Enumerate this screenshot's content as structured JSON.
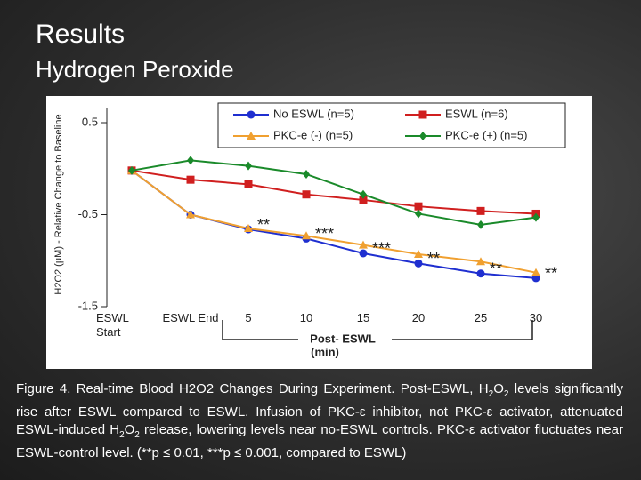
{
  "header": {
    "title": "Results",
    "subtitle": "Hydrogen Peroxide"
  },
  "chart_data": {
    "type": "line",
    "y_label": "H2O2 (µM) - Relative Change to Baseline",
    "x_group_label": "Post- ESWL",
    "x_group_unit": "(min)",
    "categories": [
      "ESWL Start",
      "ESWL End",
      "5",
      "10",
      "15",
      "20",
      "25",
      "30"
    ],
    "ylim": [
      -1.5,
      0.5
    ],
    "yticks": [
      -1.5,
      -0.5,
      0.5
    ],
    "series": [
      {
        "name": "No ESWL (n=5)",
        "color": "#1f2fd0",
        "marker": "circle",
        "values": [
          -0.02,
          -0.5,
          -0.66,
          -0.76,
          -0.92,
          -1.03,
          -1.14,
          -1.19
        ]
      },
      {
        "name": "ESWL (n=6)",
        "color": "#d01f1f",
        "marker": "square",
        "values": [
          -0.02,
          -0.12,
          -0.17,
          -0.28,
          -0.34,
          -0.41,
          -0.46,
          -0.49
        ]
      },
      {
        "name": "PKC-e (-) (n=5)",
        "color": "#f0a030",
        "marker": "triangle",
        "values": [
          -0.02,
          -0.5,
          -0.65,
          -0.73,
          -0.83,
          -0.93,
          -1.01,
          -1.13
        ]
      },
      {
        "name": "PKC-e (+) (n=5)",
        "color": "#1a8a2a",
        "marker": "diamond",
        "values": [
          -0.02,
          0.09,
          0.03,
          -0.06,
          -0.28,
          -0.49,
          -0.61,
          -0.53
        ]
      }
    ],
    "significance": [
      null,
      null,
      "**",
      "***",
      "***",
      "**",
      "**",
      "**"
    ]
  },
  "caption": [
    {
      "text": "Figure 4. Real-time Blood H2O2 Changes During Experiment. Post-ESWL, H"
    },
    {
      "text": "2",
      "sub": true
    },
    {
      "text": "O"
    },
    {
      "text": "2",
      "sub": true
    },
    {
      "text": " levels significantly rise after ESWL compared to ESWL. Infusion of PKC-ε inhibitor, not PKC-ε activator, attenuated ESWL-induced H"
    },
    {
      "text": "2",
      "sub": true
    },
    {
      "text": "O"
    },
    {
      "text": "2",
      "sub": true
    },
    {
      "text": " release, lowering levels near no-ESWL controls. PKC-ε activator fluctuates near ESWL-control level. (**p ≤ 0.01, ***p ≤ 0.001, compared to ESWL)"
    }
  ]
}
